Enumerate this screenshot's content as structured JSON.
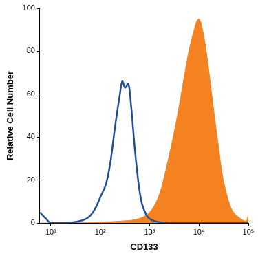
{
  "chart_data": {
    "type": "line",
    "x_label": "CD133",
    "y_label": "Relative Cell Number",
    "log": "x",
    "grid": false,
    "xlim": [
      6,
      100000
    ],
    "xticks": [
      {
        "value": 10,
        "label": "10¹"
      },
      {
        "value": 100,
        "label": "10²"
      },
      {
        "value": 1000,
        "label": "10³"
      },
      {
        "value": 10000,
        "label": "10⁴"
      },
      {
        "value": 100000,
        "label": "10⁵"
      }
    ],
    "ylim": [
      0,
      100
    ],
    "yticks": [
      0,
      20,
      40,
      60,
      80,
      100
    ],
    "series": [
      {
        "type": "line",
        "color": "#1f4e9c",
        "x": [
          6,
          8,
          10,
          20,
          40,
          60,
          80,
          100,
          130,
          160,
          200,
          250,
          280,
          320,
          370,
          420,
          500,
          600,
          700,
          850,
          1000,
          1500,
          3000,
          100000
        ],
        "values": [
          5,
          2,
          0,
          0,
          1,
          3,
          7,
          12,
          18,
          28,
          45,
          60,
          66,
          63,
          65,
          55,
          35,
          18,
          9,
          4,
          2,
          0.5,
          0,
          0
        ]
      },
      {
        "type": "area",
        "color": "#f58220",
        "x": [
          6,
          100,
          300,
          600,
          1000,
          1500,
          2000,
          3000,
          4000,
          5000,
          6000,
          7000,
          8000,
          9000,
          10000,
          11000,
          13000,
          16000,
          20000,
          25000,
          30000,
          40000,
          50000,
          70000,
          90000,
          100000
        ],
        "values": [
          0,
          0.5,
          1,
          2,
          5,
          12,
          22,
          40,
          55,
          68,
          78,
          85,
          90,
          94,
          95,
          93,
          85,
          70,
          52,
          35,
          22,
          10,
          5,
          2,
          1,
          4
        ]
      }
    ]
  }
}
